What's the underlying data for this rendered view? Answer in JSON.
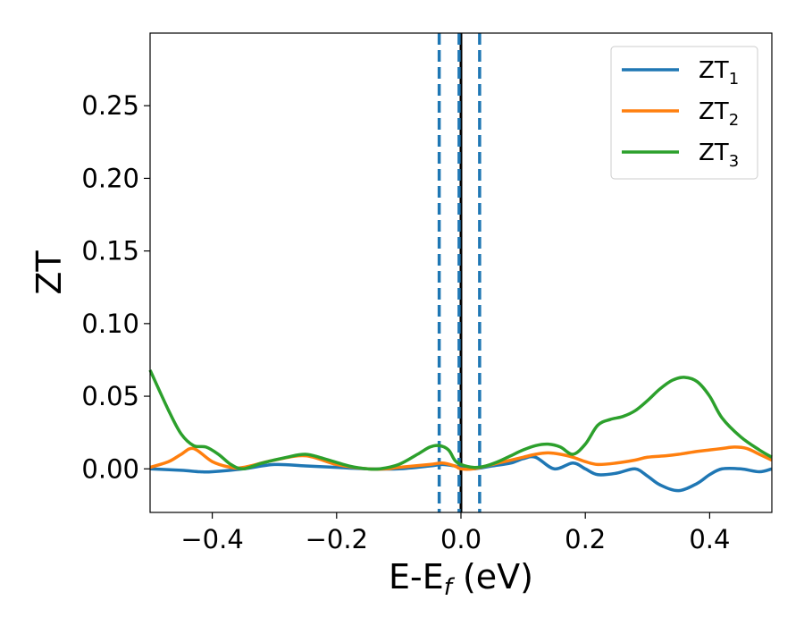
{
  "chart_data": {
    "type": "line",
    "title": "",
    "xlabel": {
      "main": "E-E",
      "sub": "f",
      "suffix": " (eV)"
    },
    "ylabel": "ZT",
    "xlim": [
      -0.5,
      0.5
    ],
    "ylim": [
      -0.03,
      0.3
    ],
    "xticks": [
      -0.4,
      -0.2,
      0.0,
      0.2,
      0.4
    ],
    "xtick_labels": [
      "−0.4",
      "−0.2",
      "0.0",
      "0.2",
      "0.4"
    ],
    "yticks": [
      0.0,
      0.05,
      0.1,
      0.15,
      0.2,
      0.25
    ],
    "ytick_labels": [
      "0.00",
      "0.05",
      "0.10",
      "0.15",
      "0.20",
      "0.25"
    ],
    "grid": false,
    "legend_position": "top-right",
    "vlines": [
      {
        "x": 0.0,
        "style": "solid",
        "color": "#000000"
      },
      {
        "x": -0.035,
        "style": "dashed",
        "color": "#1f77b4"
      },
      {
        "x": -0.003,
        "style": "dashed",
        "color": "#1f77b4"
      },
      {
        "x": 0.03,
        "style": "dashed",
        "color": "#1f77b4"
      }
    ],
    "series": [
      {
        "name": "ZT",
        "name_sub": "1",
        "color": "#1f77b4",
        "x": [
          -0.5,
          -0.45,
          -0.42,
          -0.4,
          -0.35,
          -0.3,
          -0.25,
          -0.2,
          -0.15,
          -0.1,
          -0.05,
          -0.03,
          -0.01,
          0.0,
          0.02,
          0.05,
          0.08,
          0.1,
          0.12,
          0.15,
          0.18,
          0.2,
          0.22,
          0.25,
          0.28,
          0.3,
          0.32,
          0.35,
          0.38,
          0.4,
          0.42,
          0.45,
          0.48,
          0.5
        ],
        "y": [
          0.0,
          -0.001,
          -0.002,
          -0.002,
          0.0,
          0.003,
          0.002,
          0.001,
          0.0,
          0.0,
          0.002,
          0.003,
          0.002,
          0.001,
          0.0,
          0.002,
          0.004,
          0.007,
          0.008,
          0.0,
          0.004,
          0.0,
          -0.004,
          -0.003,
          0.0,
          -0.005,
          -0.011,
          -0.015,
          -0.01,
          -0.004,
          0.0,
          0.0,
          -0.002,
          0.0
        ]
      },
      {
        "name": "ZT",
        "name_sub": "2",
        "color": "#ff7f0e",
        "x": [
          -0.5,
          -0.47,
          -0.45,
          -0.43,
          -0.4,
          -0.37,
          -0.35,
          -0.3,
          -0.25,
          -0.2,
          -0.15,
          -0.12,
          -0.1,
          -0.05,
          -0.03,
          -0.01,
          0.0,
          0.02,
          0.05,
          0.08,
          0.1,
          0.12,
          0.14,
          0.16,
          0.18,
          0.2,
          0.22,
          0.25,
          0.28,
          0.3,
          0.33,
          0.35,
          0.38,
          0.4,
          0.42,
          0.44,
          0.46,
          0.48,
          0.5
        ],
        "y": [
          0.001,
          0.005,
          0.01,
          0.014,
          0.005,
          0.001,
          0.001,
          0.006,
          0.009,
          0.003,
          0.0,
          0.0,
          0.001,
          0.003,
          0.004,
          0.002,
          0.0,
          0.0,
          0.003,
          0.006,
          0.008,
          0.01,
          0.011,
          0.01,
          0.008,
          0.005,
          0.003,
          0.004,
          0.006,
          0.008,
          0.009,
          0.01,
          0.012,
          0.013,
          0.014,
          0.015,
          0.014,
          0.01,
          0.006
        ]
      },
      {
        "name": "ZT",
        "name_sub": "3",
        "color": "#2ca02c",
        "x": [
          -0.5,
          -0.47,
          -0.45,
          -0.43,
          -0.41,
          -0.39,
          -0.37,
          -0.35,
          -0.32,
          -0.28,
          -0.25,
          -0.22,
          -0.18,
          -0.15,
          -0.13,
          -0.1,
          -0.07,
          -0.05,
          -0.035,
          -0.02,
          -0.01,
          0.0,
          0.02,
          0.04,
          0.06,
          0.08,
          0.1,
          0.12,
          0.14,
          0.16,
          0.18,
          0.2,
          0.22,
          0.24,
          0.26,
          0.28,
          0.3,
          0.32,
          0.34,
          0.36,
          0.38,
          0.4,
          0.42,
          0.45,
          0.48,
          0.5
        ],
        "y": [
          0.068,
          0.04,
          0.024,
          0.016,
          0.015,
          0.01,
          0.003,
          0.0,
          0.004,
          0.008,
          0.01,
          0.007,
          0.002,
          0.0,
          0.0,
          0.003,
          0.01,
          0.015,
          0.016,
          0.013,
          0.006,
          0.003,
          0.001,
          0.002,
          0.005,
          0.009,
          0.013,
          0.016,
          0.017,
          0.015,
          0.01,
          0.017,
          0.03,
          0.034,
          0.036,
          0.04,
          0.047,
          0.055,
          0.061,
          0.063,
          0.06,
          0.05,
          0.035,
          0.022,
          0.013,
          0.008
        ]
      }
    ]
  }
}
